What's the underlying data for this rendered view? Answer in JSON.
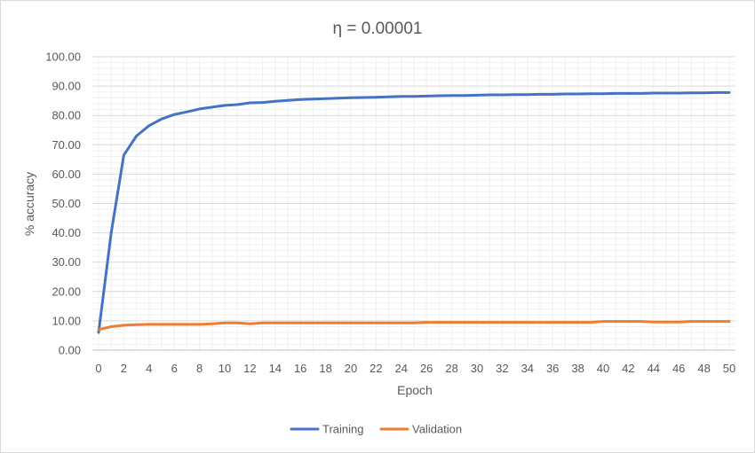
{
  "chart_data": {
    "type": "line",
    "title": "η = 0.00001",
    "xlabel": "Epoch",
    "ylabel": "% accuracy",
    "xlim": [
      0,
      50
    ],
    "ylim": [
      0,
      100
    ],
    "x_ticks": [
      "0",
      "2",
      "4",
      "6",
      "8",
      "10",
      "12",
      "14",
      "16",
      "18",
      "20",
      "22",
      "24",
      "26",
      "28",
      "30",
      "32",
      "34",
      "36",
      "38",
      "40",
      "42",
      "44",
      "46",
      "48",
      "50"
    ],
    "y_ticks": [
      "0.00",
      "10.00",
      "20.00",
      "30.00",
      "40.00",
      "50.00",
      "60.00",
      "70.00",
      "80.00",
      "90.00",
      "100.00"
    ],
    "grid": true,
    "legend_position": "bottom",
    "x": [
      0,
      1,
      2,
      3,
      4,
      5,
      6,
      7,
      8,
      9,
      10,
      11,
      12,
      13,
      14,
      15,
      16,
      17,
      18,
      19,
      20,
      21,
      22,
      23,
      24,
      25,
      26,
      27,
      28,
      29,
      30,
      31,
      32,
      33,
      34,
      35,
      36,
      37,
      38,
      39,
      40,
      41,
      42,
      43,
      44,
      45,
      46,
      47,
      48,
      49,
      50
    ],
    "series": [
      {
        "name": "Training",
        "color": "#4472c4",
        "values": [
          6.0,
          40.0,
          66.5,
          73.0,
          76.5,
          78.8,
          80.3,
          81.2,
          82.2,
          82.8,
          83.4,
          83.7,
          84.3,
          84.4,
          84.8,
          85.1,
          85.4,
          85.6,
          85.7,
          85.9,
          86.0,
          86.1,
          86.2,
          86.3,
          86.5,
          86.5,
          86.6,
          86.7,
          86.8,
          86.8,
          86.9,
          87.0,
          87.0,
          87.1,
          87.1,
          87.2,
          87.2,
          87.3,
          87.3,
          87.4,
          87.4,
          87.5,
          87.5,
          87.5,
          87.6,
          87.6,
          87.6,
          87.7,
          87.7,
          87.8,
          87.8
        ]
      },
      {
        "name": "Validation",
        "color": "#ed7d31",
        "values": [
          7.0,
          8.0,
          8.5,
          8.7,
          8.8,
          8.8,
          8.8,
          8.8,
          8.8,
          9.0,
          9.3,
          9.3,
          9.0,
          9.3,
          9.3,
          9.3,
          9.3,
          9.3,
          9.3,
          9.3,
          9.3,
          9.3,
          9.3,
          9.3,
          9.3,
          9.3,
          9.5,
          9.5,
          9.5,
          9.5,
          9.5,
          9.5,
          9.5,
          9.5,
          9.5,
          9.5,
          9.5,
          9.5,
          9.5,
          9.5,
          9.8,
          9.8,
          9.8,
          9.8,
          9.6,
          9.6,
          9.6,
          9.8,
          9.8,
          9.8,
          9.8
        ]
      }
    ]
  }
}
